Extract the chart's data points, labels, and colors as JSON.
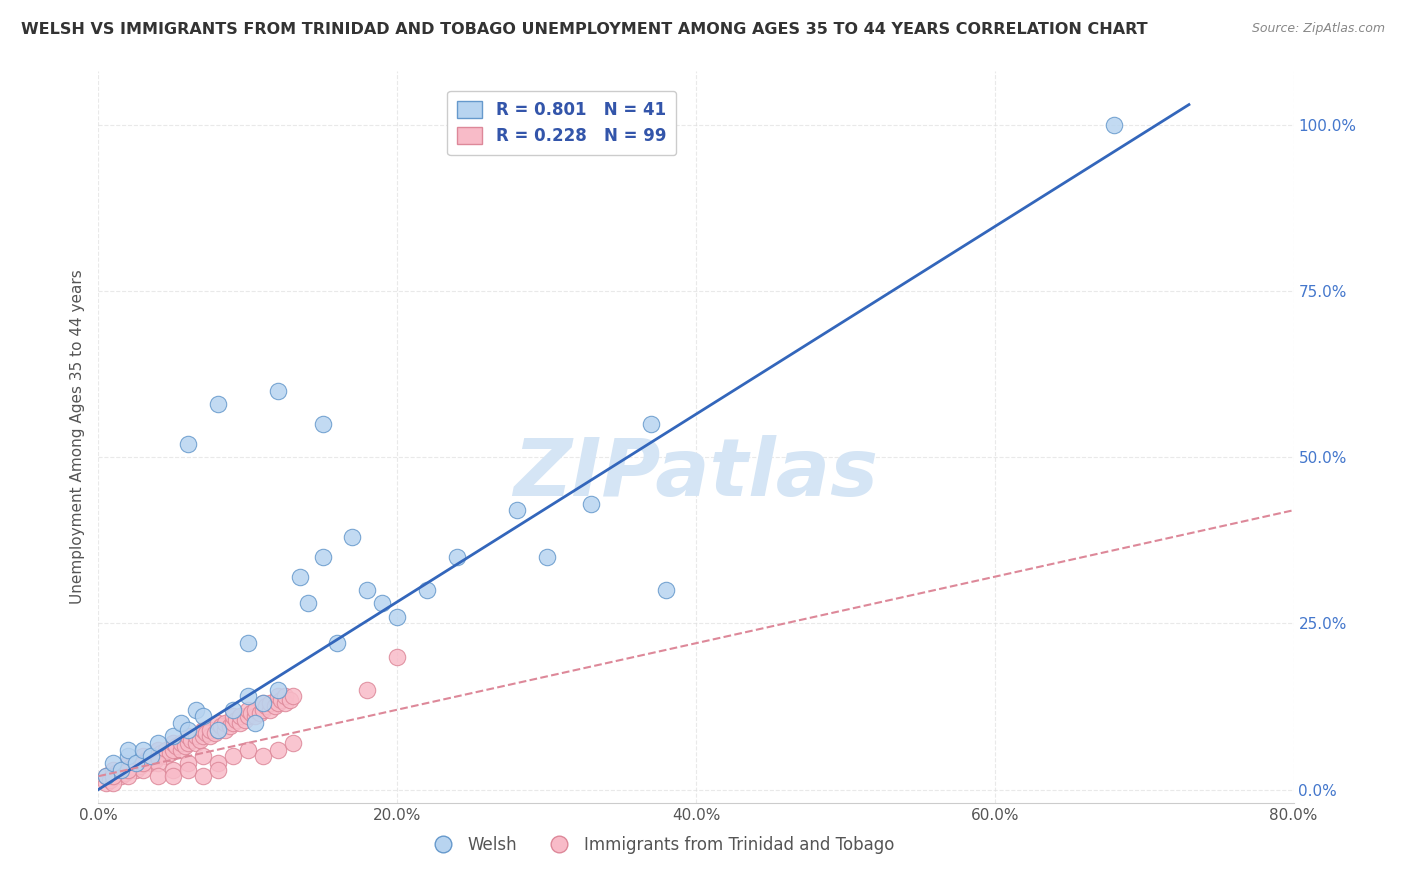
{
  "title": "WELSH VS IMMIGRANTS FROM TRINIDAD AND TOBAGO UNEMPLOYMENT AMONG AGES 35 TO 44 YEARS CORRELATION CHART",
  "source": "Source: ZipAtlas.com",
  "ylabel": "Unemployment Among Ages 35 to 44 years",
  "xlim": [
    0.0,
    0.8
  ],
  "ylim": [
    -0.02,
    1.08
  ],
  "xtick_labels": [
    "0.0%",
    "20.0%",
    "40.0%",
    "60.0%",
    "80.0%"
  ],
  "xtick_vals": [
    0.0,
    0.2,
    0.4,
    0.6,
    0.8
  ],
  "ytick_labels": [
    "0.0%",
    "25.0%",
    "50.0%",
    "75.0%",
    "100.0%"
  ],
  "ytick_vals": [
    0.0,
    0.25,
    0.5,
    0.75,
    1.0
  ],
  "welsh_R": 0.801,
  "welsh_N": 41,
  "tt_R": 0.228,
  "tt_N": 99,
  "welsh_color": "#b8d4f0",
  "welsh_edge": "#6699cc",
  "tt_color": "#f8bbc8",
  "tt_edge": "#dd8899",
  "welsh_line_color": "#3366bb",
  "tt_line_color": "#dd8899",
  "background_color": "#ffffff",
  "grid_color": "#e0e0e0",
  "watermark_color": "#d5e5f5",
  "legend_R_color": "#3355aa",
  "legend_border_color": "#cccccc",
  "title_color": "#333333",
  "source_color": "#888888",
  "ytick_color": "#4477cc",
  "xtick_color": "#555555",
  "welsh_line_x": [
    0.0,
    0.73
  ],
  "welsh_line_y": [
    0.0,
    1.03
  ],
  "tt_line_x": [
    0.0,
    0.8
  ],
  "tt_line_y": [
    0.02,
    0.42
  ],
  "welsh_scatter_x": [
    0.005,
    0.01,
    0.015,
    0.02,
    0.02,
    0.025,
    0.03,
    0.035,
    0.04,
    0.05,
    0.055,
    0.06,
    0.065,
    0.07,
    0.08,
    0.09,
    0.1,
    0.105,
    0.11,
    0.12,
    0.135,
    0.14,
    0.15,
    0.16,
    0.17,
    0.18,
    0.19,
    0.2,
    0.22,
    0.24,
    0.28,
    0.3,
    0.33,
    0.38,
    0.1,
    0.37,
    0.06,
    0.08,
    0.12,
    0.15,
    0.68
  ],
  "welsh_scatter_y": [
    0.02,
    0.04,
    0.03,
    0.05,
    0.06,
    0.04,
    0.06,
    0.05,
    0.07,
    0.08,
    0.1,
    0.09,
    0.12,
    0.11,
    0.09,
    0.12,
    0.14,
    0.1,
    0.13,
    0.15,
    0.32,
    0.28,
    0.35,
    0.22,
    0.38,
    0.3,
    0.28,
    0.26,
    0.3,
    0.35,
    0.42,
    0.35,
    0.43,
    0.3,
    0.22,
    0.55,
    0.52,
    0.58,
    0.6,
    0.55,
    1.0
  ],
  "tt_scatter_x": [
    0.005,
    0.005,
    0.008,
    0.01,
    0.01,
    0.012,
    0.015,
    0.015,
    0.018,
    0.02,
    0.02,
    0.022,
    0.025,
    0.025,
    0.028,
    0.03,
    0.03,
    0.032,
    0.035,
    0.035,
    0.038,
    0.04,
    0.04,
    0.042,
    0.045,
    0.045,
    0.048,
    0.05,
    0.05,
    0.052,
    0.055,
    0.055,
    0.058,
    0.06,
    0.06,
    0.062,
    0.065,
    0.065,
    0.068,
    0.07,
    0.07,
    0.072,
    0.075,
    0.075,
    0.078,
    0.08,
    0.08,
    0.082,
    0.085,
    0.085,
    0.088,
    0.09,
    0.09,
    0.092,
    0.095,
    0.095,
    0.098,
    0.1,
    0.1,
    0.102,
    0.105,
    0.105,
    0.108,
    0.11,
    0.11,
    0.112,
    0.115,
    0.115,
    0.118,
    0.12,
    0.12,
    0.122,
    0.125,
    0.125,
    0.128,
    0.13,
    0.01,
    0.02,
    0.03,
    0.04,
    0.05,
    0.06,
    0.07,
    0.08,
    0.09,
    0.1,
    0.11,
    0.12,
    0.13,
    0.01,
    0.02,
    0.03,
    0.18,
    0.04,
    0.05,
    0.06,
    0.07,
    0.08,
    0.2
  ],
  "tt_scatter_y": [
    0.01,
    0.02,
    0.015,
    0.02,
    0.03,
    0.025,
    0.02,
    0.03,
    0.025,
    0.03,
    0.04,
    0.035,
    0.03,
    0.04,
    0.035,
    0.04,
    0.05,
    0.045,
    0.04,
    0.05,
    0.045,
    0.05,
    0.06,
    0.055,
    0.05,
    0.06,
    0.055,
    0.06,
    0.07,
    0.065,
    0.06,
    0.07,
    0.065,
    0.07,
    0.08,
    0.075,
    0.07,
    0.08,
    0.075,
    0.08,
    0.09,
    0.085,
    0.08,
    0.09,
    0.085,
    0.09,
    0.1,
    0.095,
    0.09,
    0.1,
    0.095,
    0.1,
    0.11,
    0.105,
    0.1,
    0.11,
    0.105,
    0.11,
    0.12,
    0.115,
    0.11,
    0.12,
    0.115,
    0.12,
    0.13,
    0.125,
    0.12,
    0.13,
    0.125,
    0.13,
    0.14,
    0.135,
    0.13,
    0.14,
    0.135,
    0.14,
    0.01,
    0.02,
    0.03,
    0.04,
    0.03,
    0.04,
    0.05,
    0.04,
    0.05,
    0.06,
    0.05,
    0.06,
    0.07,
    0.02,
    0.03,
    0.04,
    0.15,
    0.02,
    0.02,
    0.03,
    0.02,
    0.03,
    0.2
  ]
}
